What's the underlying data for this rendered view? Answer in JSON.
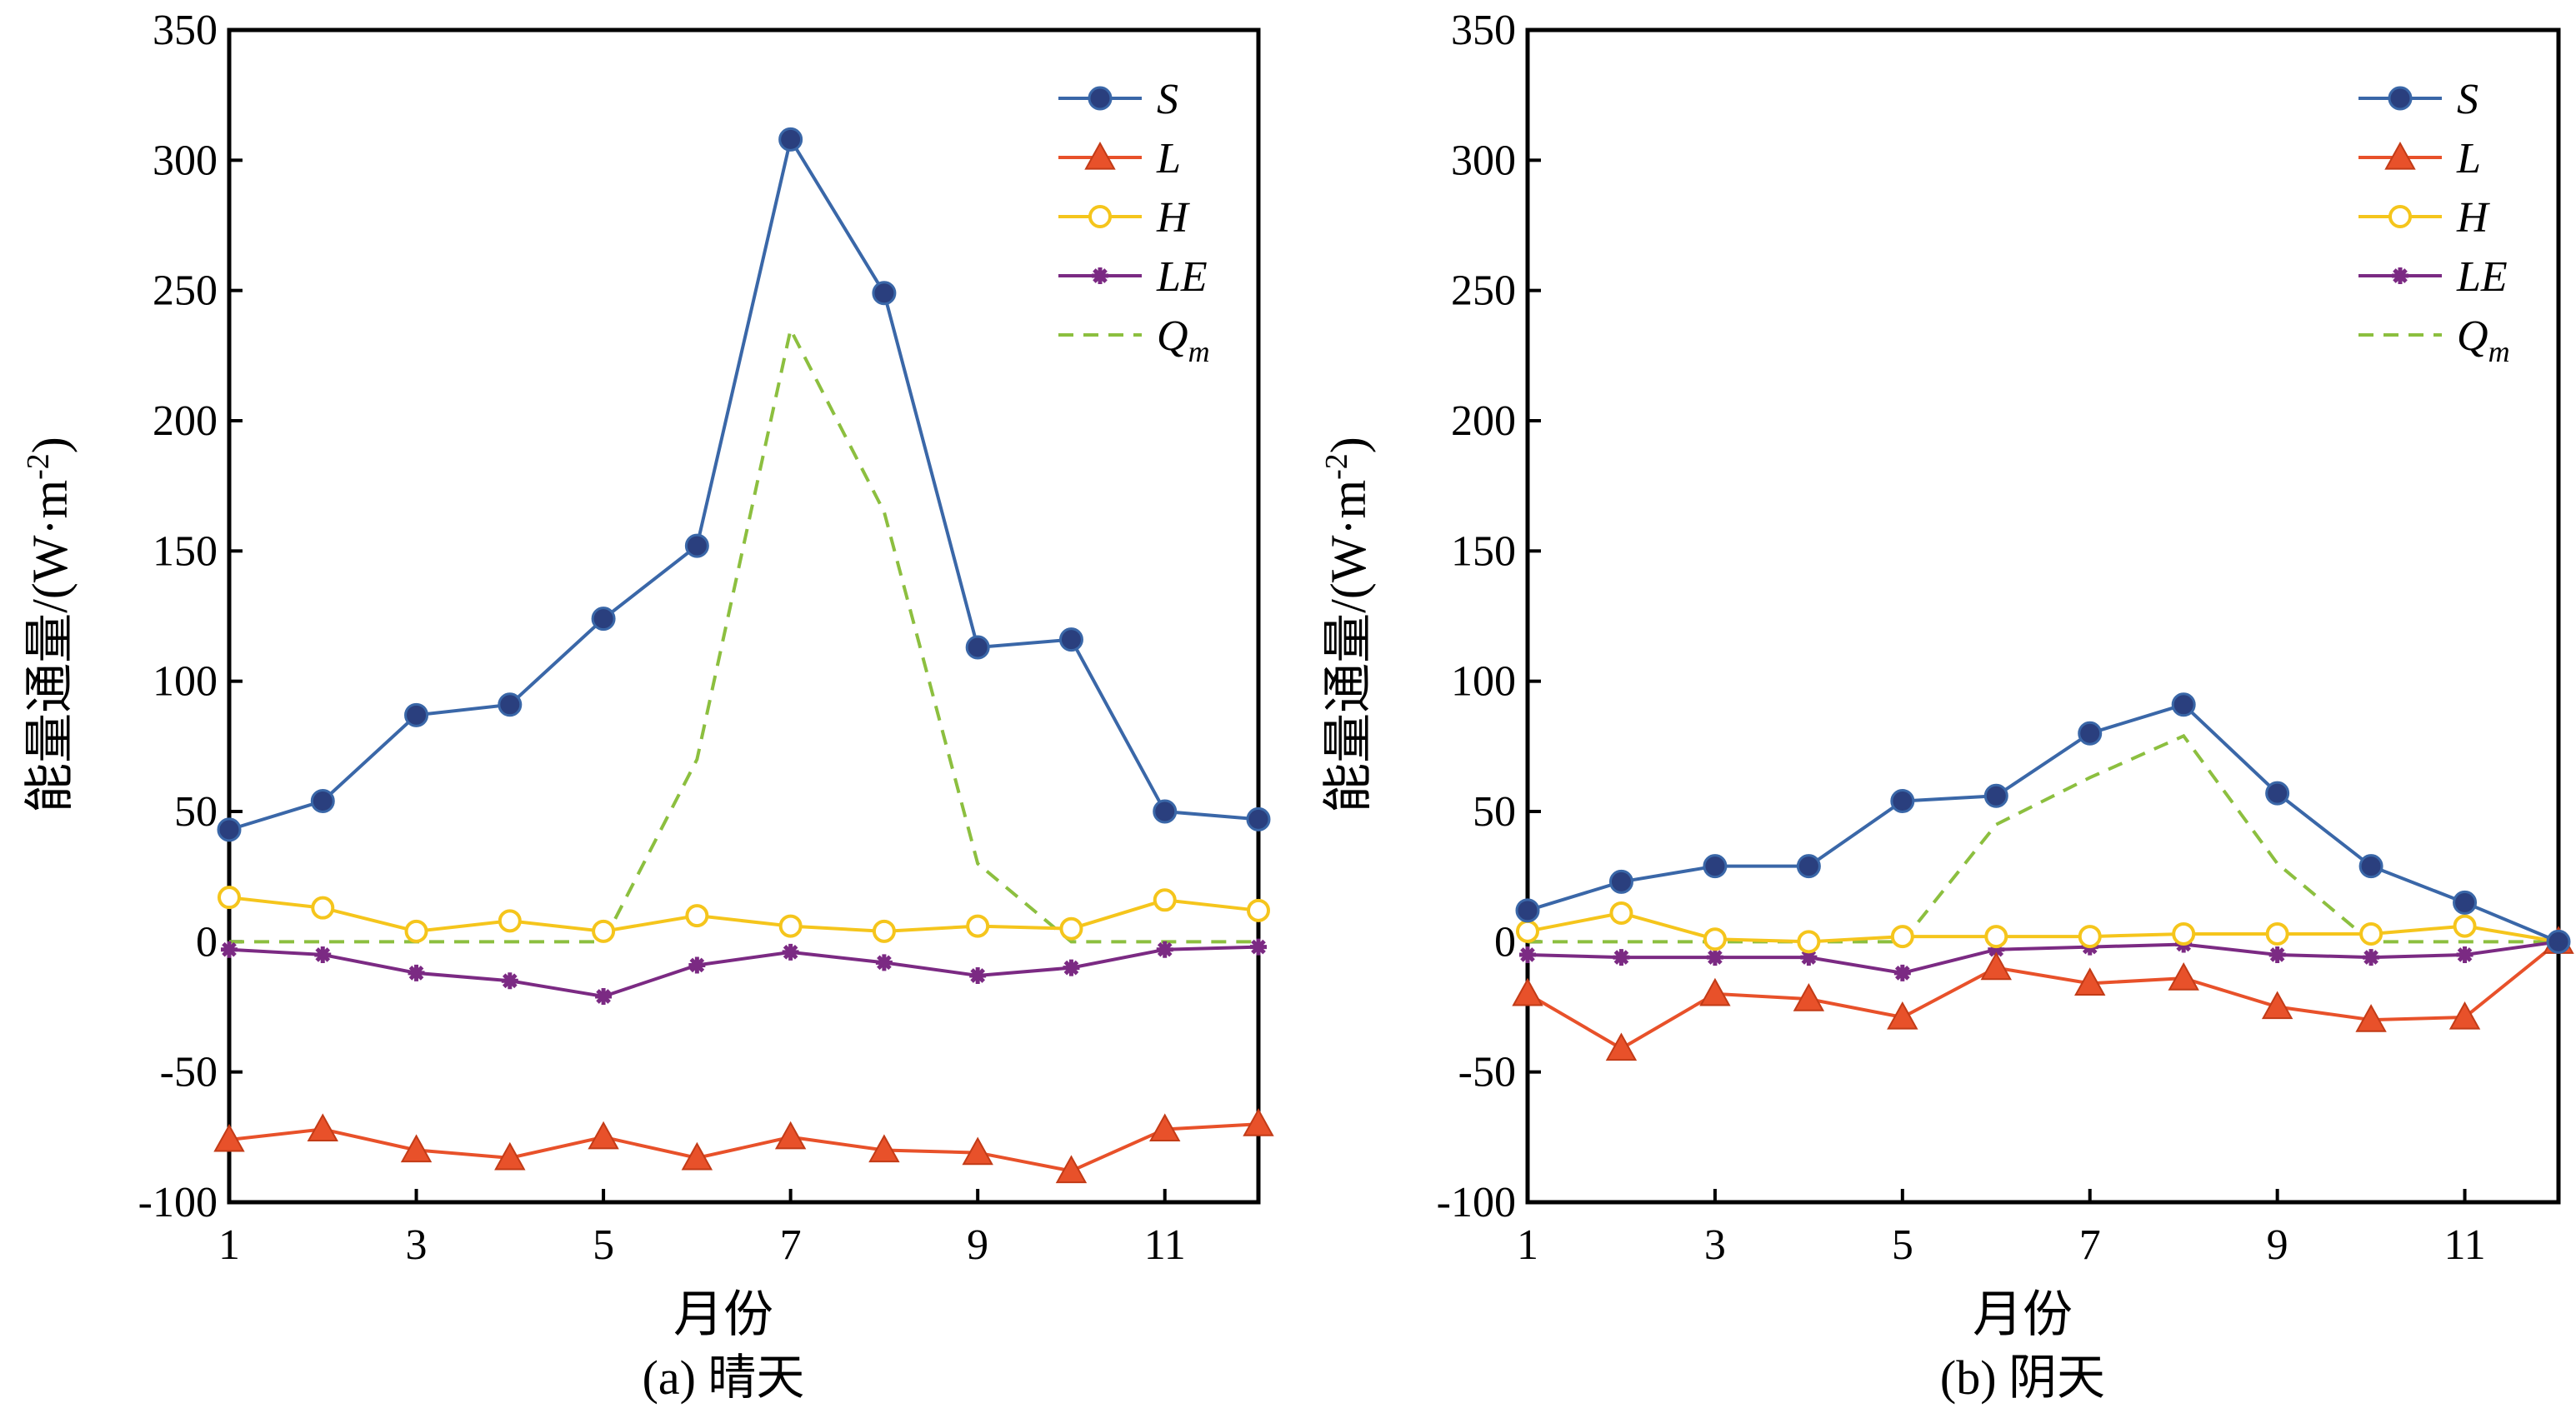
{
  "chart_data": [
    {
      "type": "line",
      "caption": "(a) 晴天",
      "xlabel": "月份",
      "ylabel": "能量通量/(W·m",
      "ylabel_sup": "-2",
      "ylabel_close": ")",
      "xlim": [
        1,
        12
      ],
      "ylim": [
        -100,
        350
      ],
      "xticks": [
        1,
        3,
        5,
        7,
        9,
        11
      ],
      "yticks": [
        -100,
        -50,
        0,
        50,
        100,
        150,
        200,
        250,
        300,
        350
      ],
      "legend_position": "top-right",
      "x": [
        1,
        2,
        3,
        4,
        5,
        6,
        7,
        8,
        9,
        10,
        11,
        12
      ],
      "series": [
        {
          "name": "S",
          "values": [
            43,
            54,
            87,
            91,
            124,
            152,
            308,
            249,
            113,
            116,
            50,
            47
          ]
        },
        {
          "name": "L",
          "values": [
            -76,
            -72,
            -80,
            -83,
            -75,
            -83,
            -75,
            -80,
            -81,
            -88,
            -72,
            -70
          ]
        },
        {
          "name": "H",
          "values": [
            17,
            13,
            4,
            8,
            4,
            10,
            6,
            4,
            6,
            5,
            16,
            12
          ]
        },
        {
          "name": "LE",
          "values": [
            -3,
            -5,
            -12,
            -15,
            -21,
            -9,
            -4,
            -8,
            -13,
            -10,
            -3,
            -2
          ]
        },
        {
          "name": "Qm",
          "values": [
            0,
            0,
            0,
            0,
            0,
            70,
            235,
            165,
            30,
            0,
            0,
            0
          ]
        }
      ]
    },
    {
      "type": "line",
      "caption": "(b) 阴天",
      "xlabel": "月份",
      "ylabel": "能量通量/(W·m",
      "ylabel_sup": "-2",
      "ylabel_close": ")",
      "xlim": [
        1,
        12
      ],
      "ylim": [
        -100,
        350
      ],
      "xticks": [
        1,
        3,
        5,
        7,
        9,
        11
      ],
      "yticks": [
        -100,
        -50,
        0,
        50,
        100,
        150,
        200,
        250,
        300,
        350
      ],
      "legend_position": "top-right",
      "x": [
        1,
        2,
        3,
        4,
        5,
        6,
        7,
        8,
        9,
        10,
        11,
        12
      ],
      "series": [
        {
          "name": "S",
          "values": [
            12,
            23,
            29,
            29,
            54,
            56,
            80,
            91,
            57,
            29,
            15,
            0
          ]
        },
        {
          "name": "L",
          "values": [
            -20,
            -41,
            -20,
            -22,
            -29,
            -10,
            -16,
            -14,
            -25,
            -30,
            -29,
            0
          ]
        },
        {
          "name": "H",
          "values": [
            4,
            11,
            1,
            0,
            2,
            2,
            2,
            3,
            3,
            3,
            6,
            0
          ]
        },
        {
          "name": "LE",
          "values": [
            -5,
            -6,
            -6,
            -6,
            -12,
            -3,
            -2,
            -1,
            -5,
            -6,
            -5,
            0
          ]
        },
        {
          "name": "Qm",
          "values": [
            0,
            0,
            0,
            0,
            0,
            45,
            63,
            79,
            30,
            0,
            0,
            0
          ]
        }
      ]
    }
  ],
  "legend": {
    "S": "S",
    "L": "L",
    "H": "H",
    "LE": "LE",
    "Q": "Q",
    "m": "m"
  },
  "colors": {
    "S": "#3a67a8",
    "S_marker": "#2a3f7e",
    "L": "#e8512a",
    "H": "#f5c51c",
    "LE": "#7b2a83",
    "Qm": "#8cbf3f"
  }
}
